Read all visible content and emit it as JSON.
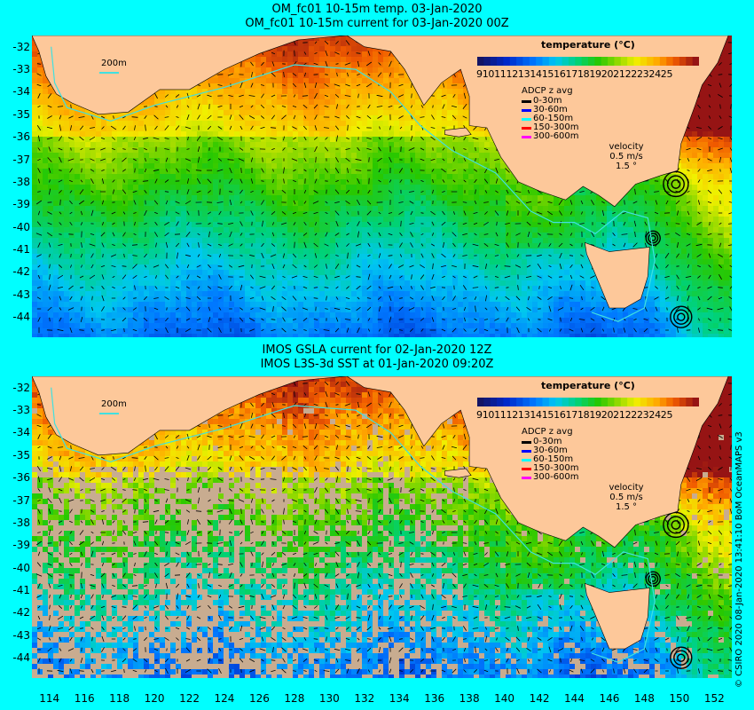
{
  "panels": [
    {
      "title1": "OM_fc01 10-15m temp. 03-Jan-2020",
      "title2": "OM_fc01 10-15m current for 03-Jan-2020 00Z",
      "mode": "model"
    },
    {
      "title1": "IMOS GSLA current for 02-Jan-2020 12Z",
      "title2": "IMOS L3S-3d SST at 01-Jan-2020 09:20Z",
      "mode": "satellite"
    }
  ],
  "legend": {
    "temperature_title": "temperature (°C)",
    "scale_labels": [
      "9",
      "10",
      "11",
      "12",
      "13",
      "14",
      "15",
      "16",
      "17",
      "18",
      "19",
      "20",
      "21",
      "22",
      "23",
      "24",
      "25"
    ],
    "adcp_title": "ADCP z avg",
    "adcp_entries": [
      {
        "label": "0-30m",
        "color": "#000000"
      },
      {
        "label": "30-60m",
        "color": "#0000ff"
      },
      {
        "label": "60-150m",
        "color": "#00ffff"
      },
      {
        "label": "150-300m",
        "color": "#ff0000"
      },
      {
        "label": "300-600m",
        "color": "#ff00ff"
      }
    ],
    "velocity_title": "velocity",
    "velocity_label1": "0.5 m/s",
    "velocity_label2": "1.5 °"
  },
  "isobath_label": "200m",
  "y_ticks": [
    "-32",
    "-33",
    "-34",
    "-35",
    "-36",
    "-37",
    "-38",
    "-39",
    "-40",
    "-41",
    "-42",
    "-43",
    "-44"
  ],
  "x_ticks": [
    "114",
    "116",
    "118",
    "120",
    "122",
    "124",
    "126",
    "128",
    "130",
    "132",
    "134",
    "136",
    "138",
    "140",
    "142",
    "144",
    "146",
    "148",
    "150",
    "152"
  ],
  "credit": "© CSIRO 2020   08-Jan-2020 13:41:10 BoM OceanMAPS v3",
  "colors": {
    "background": "#00ffff",
    "land": "#fdc89a",
    "nodata": "#c8ac90",
    "isobath": "#40e0e0"
  },
  "geo": {
    "lon_min": 113,
    "lon_max": 153,
    "lat_max": -31.5,
    "lat_min": -44.9
  }
}
